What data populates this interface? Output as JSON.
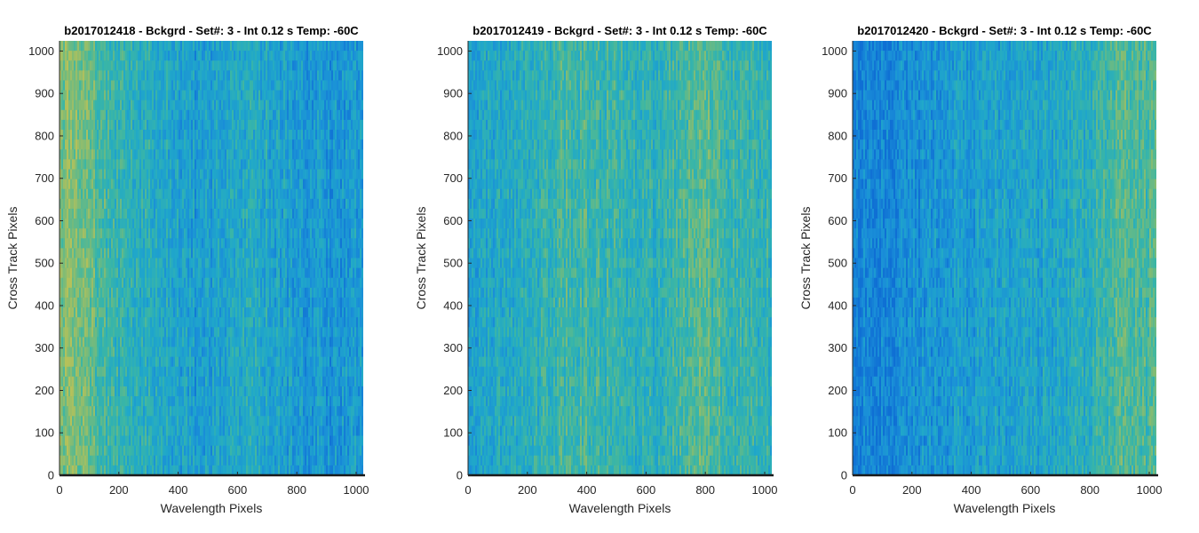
{
  "chart_data": [
    {
      "type": "heatmap",
      "title": "b2017012418 - Bckgrd - Set#: 3 - Int 0.12 s Temp: -60C",
      "xlabel": "Wavelength Pixels",
      "ylabel": "Cross Track Pixels",
      "xlim": [
        0,
        1024
      ],
      "ylim": [
        0,
        1024
      ],
      "xticks": [
        "0",
        "200",
        "400",
        "600",
        "800",
        "1000"
      ],
      "yticks": [
        "0",
        "100",
        "200",
        "300",
        "400",
        "500",
        "600",
        "700",
        "800",
        "900",
        "1000"
      ],
      "column_profile": [
        {
          "x": 0,
          "level": 0.85
        },
        {
          "x": 100,
          "level": 0.72
        },
        {
          "x": 200,
          "level": 0.55
        },
        {
          "x": 350,
          "level": 0.42
        },
        {
          "x": 450,
          "level": 0.3
        },
        {
          "x": 550,
          "level": 0.36
        },
        {
          "x": 650,
          "level": 0.45
        },
        {
          "x": 800,
          "level": 0.3
        },
        {
          "x": 950,
          "level": 0.25
        },
        {
          "x": 1024,
          "level": 0.32
        }
      ]
    },
    {
      "type": "heatmap",
      "title": "b2017012419 - Bckgrd - Set#: 3 - Int 0.12 s Temp: -60C",
      "xlabel": "Wavelength Pixels",
      "ylabel": "Cross Track Pixels",
      "xlim": [
        0,
        1024
      ],
      "ylim": [
        0,
        1024
      ],
      "xticks": [
        "0",
        "200",
        "400",
        "600",
        "800",
        "1000"
      ],
      "yticks": [
        "0",
        "100",
        "200",
        "300",
        "400",
        "500",
        "600",
        "700",
        "800",
        "900",
        "1000"
      ],
      "column_profile": [
        {
          "x": 0,
          "level": 0.38
        },
        {
          "x": 100,
          "level": 0.42
        },
        {
          "x": 200,
          "level": 0.45
        },
        {
          "x": 350,
          "level": 0.62
        },
        {
          "x": 500,
          "level": 0.55
        },
        {
          "x": 600,
          "level": 0.48
        },
        {
          "x": 700,
          "level": 0.55
        },
        {
          "x": 800,
          "level": 0.72
        },
        {
          "x": 900,
          "level": 0.55
        },
        {
          "x": 1024,
          "level": 0.5
        }
      ]
    },
    {
      "type": "heatmap",
      "title": "b2017012420 - Bckgrd - Set#: 3 - Int 0.12 s Temp: -60C",
      "xlabel": "Wavelength Pixels",
      "ylabel": "Cross Track Pixels",
      "xlim": [
        0,
        1024
      ],
      "ylim": [
        0,
        1024
      ],
      "xticks": [
        "0",
        "200",
        "400",
        "600",
        "800",
        "1000"
      ],
      "yticks": [
        "0",
        "100",
        "200",
        "300",
        "400",
        "500",
        "600",
        "700",
        "800",
        "900",
        "1000"
      ],
      "column_profile": [
        {
          "x": 0,
          "level": 0.12
        },
        {
          "x": 100,
          "level": 0.15
        },
        {
          "x": 200,
          "level": 0.22
        },
        {
          "x": 350,
          "level": 0.3
        },
        {
          "x": 500,
          "level": 0.35
        },
        {
          "x": 650,
          "level": 0.38
        },
        {
          "x": 800,
          "level": 0.48
        },
        {
          "x": 900,
          "level": 0.7
        },
        {
          "x": 1024,
          "level": 0.62
        }
      ]
    }
  ],
  "colors": {
    "colormap": [
      "#0f6fd4",
      "#1a8fd8",
      "#20a8c9",
      "#3bb6a5",
      "#7bbb78",
      "#b5c15a"
    ],
    "axis": "#262626",
    "xaxis_line": "#1a1a1a"
  }
}
